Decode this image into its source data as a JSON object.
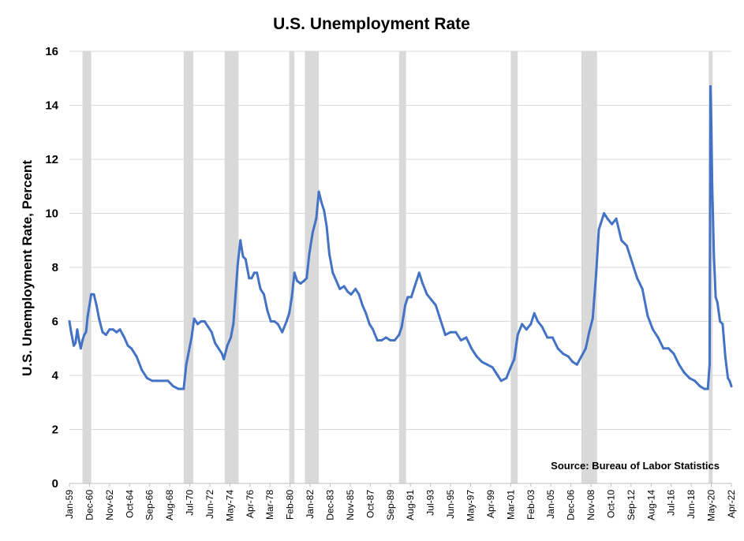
{
  "chart_data": {
    "type": "line",
    "title": "U.S. Unemployment Rate",
    "ylabel": "U.S. Unemployment Rate, Percent",
    "xlabel": "",
    "source": "Source: Bureau of Labor Statistics",
    "ylim": [
      0,
      16
    ],
    "yticks": [
      0,
      2,
      4,
      6,
      8,
      10,
      12,
      14,
      16
    ],
    "grid": "horizontal",
    "x_range": [
      "1959-01",
      "2022-04"
    ],
    "xticks": [
      "Jan-59",
      "Dec-60",
      "Nov-62",
      "Oct-64",
      "Sep-66",
      "Aug-68",
      "Jul-70",
      "Jun-72",
      "May-74",
      "Apr-76",
      "Mar-78",
      "Feb-80",
      "Jan-82",
      "Dec-83",
      "Nov-85",
      "Oct-87",
      "Sep-89",
      "Aug-91",
      "Jul-93",
      "Jun-95",
      "May-97",
      "Apr-99",
      "Mar-01",
      "Feb-03",
      "Jan-05",
      "Dec-06",
      "Nov-08",
      "Oct-10",
      "Sep-12",
      "Aug-14",
      "Jul-16",
      "Jun-18",
      "May-20",
      "Apr-22"
    ],
    "line_color": "#4472C4",
    "recession_color": "#D9D9D9",
    "recessions": [
      [
        "1960-04",
        "1961-02"
      ],
      [
        "1969-12",
        "1970-11"
      ],
      [
        "1973-11",
        "1975-03"
      ],
      [
        "1980-01",
        "1980-07"
      ],
      [
        "1981-07",
        "1982-11"
      ],
      [
        "1990-07",
        "1991-03"
      ],
      [
        "2001-03",
        "2001-11"
      ],
      [
        "2007-12",
        "2009-06"
      ],
      [
        "2020-02",
        "2020-04"
      ]
    ],
    "series": [
      {
        "x": [
          "1959-01",
          "1959-03",
          "1959-06",
          "1959-08",
          "1959-10",
          "1959-12",
          "1960-02",
          "1960-04",
          "1960-06",
          "1960-08",
          "1960-10",
          "1960-12",
          "1961-02",
          "1961-05",
          "1961-08",
          "1961-11",
          "1962-03",
          "1962-07",
          "1962-11",
          "1963-03",
          "1963-07",
          "1963-11",
          "1964-04",
          "1964-08",
          "1964-12",
          "1965-06",
          "1965-12",
          "1966-06",
          "1966-12",
          "1967-06",
          "1967-12",
          "1968-06",
          "1968-12",
          "1969-06",
          "1969-12",
          "1970-03",
          "1970-06",
          "1970-09",
          "1970-12",
          "1971-04",
          "1971-08",
          "1971-12",
          "1972-04",
          "1972-08",
          "1972-12",
          "1973-04",
          "1973-08",
          "1973-10",
          "1974-02",
          "1974-06",
          "1974-09",
          "1974-12",
          "1975-02",
          "1975-05",
          "1975-08",
          "1975-11",
          "1976-03",
          "1976-06",
          "1976-09",
          "1976-12",
          "1977-04",
          "1977-08",
          "1977-12",
          "1978-04",
          "1978-08",
          "1978-12",
          "1979-05",
          "1979-10",
          "1980-01",
          "1980-04",
          "1980-07",
          "1980-10",
          "1981-02",
          "1981-06",
          "1981-09",
          "1981-12",
          "1982-04",
          "1982-08",
          "1982-11",
          "1983-02",
          "1983-05",
          "1983-08",
          "1983-11",
          "1984-03",
          "1984-07",
          "1984-11",
          "1985-04",
          "1985-08",
          "1985-12",
          "1986-05",
          "1986-09",
          "1987-01",
          "1987-05",
          "1987-09",
          "1988-01",
          "1988-06",
          "1988-11",
          "1989-04",
          "1989-09",
          "1990-02",
          "1990-07",
          "1990-10",
          "1991-02",
          "1991-05",
          "1991-09",
          "1992-01",
          "1992-06",
          "1992-10",
          "1993-03",
          "1993-08",
          "1994-01",
          "1994-06",
          "1994-12",
          "1995-06",
          "1995-12",
          "1996-06",
          "1996-12",
          "1997-06",
          "1997-12",
          "1998-06",
          "1998-12",
          "1999-06",
          "1999-12",
          "2000-04",
          "2000-10",
          "2001-03",
          "2001-07",
          "2001-11",
          "2002-04",
          "2002-09",
          "2003-02",
          "2003-06",
          "2003-10",
          "2004-03",
          "2004-09",
          "2005-03",
          "2005-09",
          "2006-03",
          "2006-09",
          "2007-02",
          "2007-07",
          "2007-12",
          "2008-05",
          "2008-09",
          "2009-01",
          "2009-05",
          "2009-08",
          "2009-10",
          "2010-02",
          "2010-06",
          "2010-11",
          "2011-04",
          "2011-10",
          "2012-04",
          "2012-10",
          "2013-04",
          "2013-10",
          "2014-04",
          "2014-10",
          "2015-04",
          "2015-10",
          "2016-04",
          "2016-10",
          "2017-04",
          "2017-10",
          "2018-04",
          "2018-10",
          "2019-04",
          "2019-09",
          "2020-01",
          "2020-03",
          "2020-04",
          "2020-05",
          "2020-06",
          "2020-08",
          "2020-10",
          "2020-12",
          "2021-03",
          "2021-06",
          "2021-09",
          "2021-12",
          "2022-02",
          "2022-04"
        ],
        "values": [
          6.0,
          5.6,
          5.1,
          5.2,
          5.7,
          5.3,
          5.0,
          5.3,
          5.5,
          5.6,
          6.2,
          6.6,
          7.0,
          7.0,
          6.6,
          6.1,
          5.6,
          5.5,
          5.7,
          5.7,
          5.6,
          5.7,
          5.4,
          5.1,
          5.0,
          4.7,
          4.2,
          3.9,
          3.8,
          3.8,
          3.8,
          3.8,
          3.6,
          3.5,
          3.5,
          4.4,
          4.9,
          5.4,
          6.1,
          5.9,
          6.0,
          6.0,
          5.8,
          5.6,
          5.2,
          5.0,
          4.8,
          4.6,
          5.1,
          5.4,
          5.9,
          7.2,
          8.1,
          9.0,
          8.4,
          8.3,
          7.6,
          7.6,
          7.8,
          7.8,
          7.2,
          7.0,
          6.4,
          6.0,
          6.0,
          5.9,
          5.6,
          6.0,
          6.3,
          6.9,
          7.8,
          7.5,
          7.4,
          7.5,
          7.6,
          8.5,
          9.3,
          9.8,
          10.8,
          10.4,
          10.1,
          9.5,
          8.5,
          7.8,
          7.5,
          7.2,
          7.3,
          7.1,
          7.0,
          7.2,
          7.0,
          6.6,
          6.3,
          5.9,
          5.7,
          5.3,
          5.3,
          5.4,
          5.3,
          5.3,
          5.5,
          5.8,
          6.6,
          6.9,
          6.9,
          7.3,
          7.8,
          7.4,
          7.0,
          6.8,
          6.6,
          6.1,
          5.5,
          5.6,
          5.6,
          5.3,
          5.4,
          5.0,
          4.7,
          4.5,
          4.4,
          4.3,
          4.0,
          3.8,
          3.9,
          4.3,
          4.6,
          5.5,
          5.9,
          5.7,
          5.9,
          6.3,
          6.0,
          5.8,
          5.4,
          5.4,
          5.0,
          4.8,
          4.7,
          4.5,
          4.4,
          4.7,
          5.0,
          5.6,
          6.1,
          7.8,
          9.4,
          9.6,
          10.0,
          9.8,
          9.6,
          9.8,
          9.0,
          8.8,
          8.2,
          7.6,
          7.2,
          6.2,
          5.7,
          5.4,
          5.0,
          5.0,
          4.8,
          4.4,
          4.1,
          3.9,
          3.8,
          3.6,
          3.5,
          3.5,
          4.4,
          14.7,
          13.2,
          11.0,
          8.4,
          6.9,
          6.7,
          6.0,
          5.9,
          4.7,
          3.9,
          3.8,
          3.6
        ]
      }
    ]
  }
}
